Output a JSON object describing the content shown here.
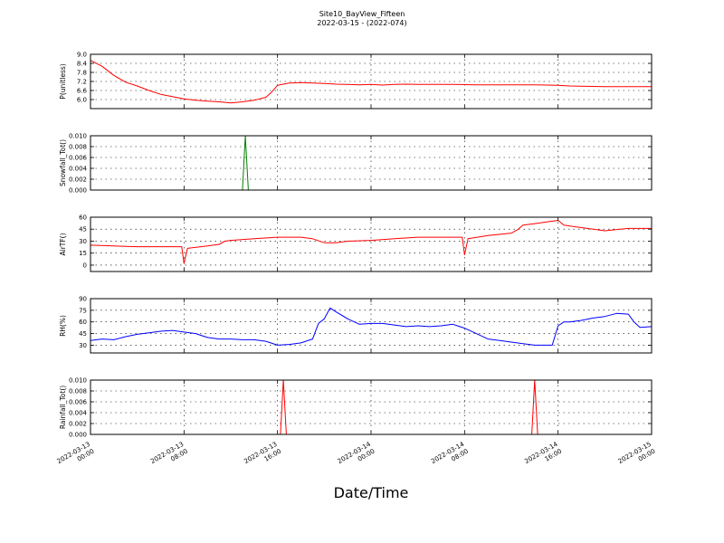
{
  "chart_data": {
    "title_line1": "Site10_BayView_Fifteen",
    "title_line2": "2022-03-15 - (2022-074)",
    "xlabel": "Date/Time",
    "x_range_hours": [
      0,
      48
    ],
    "x_ticks": [
      {
        "h": 0,
        "line1": "2022-03-13",
        "line2": "00:00"
      },
      {
        "h": 8,
        "line1": "2022-03-13",
        "line2": "08:00"
      },
      {
        "h": 16,
        "line1": "2022-03-13",
        "line2": "16:00"
      },
      {
        "h": 24,
        "line1": "2022-03-14",
        "line2": "00:00"
      },
      {
        "h": 32,
        "line1": "2022-03-14",
        "line2": "08:00"
      },
      {
        "h": 40,
        "line1": "2022-03-14",
        "line2": "16:00"
      },
      {
        "h": 48,
        "line1": "2022-03-15",
        "line2": "00:00"
      }
    ],
    "panels": [
      {
        "type": "line",
        "ylabel": "P(unitless)",
        "color": "#ff0000",
        "ylim": [
          5.4,
          9.0
        ],
        "yticks": [
          6.0,
          6.6,
          7.2,
          7.8,
          8.4,
          9.0
        ],
        "ytick_labels": [
          "6.0",
          "6.6",
          "7.2",
          "7.8",
          "8.4",
          "9.0"
        ],
        "x": [
          0,
          1,
          2,
          3,
          4,
          5,
          6,
          7,
          8,
          9,
          10,
          11,
          12,
          13,
          14,
          15,
          15.5,
          16,
          17,
          18,
          19,
          20,
          21,
          22,
          23,
          24,
          25,
          26,
          27,
          28,
          29,
          30,
          31,
          32,
          33,
          34,
          35,
          36,
          37,
          38,
          39,
          40,
          41,
          42,
          43,
          44,
          45,
          46,
          47,
          48
        ],
        "y": [
          8.6,
          8.2,
          7.6,
          7.15,
          6.9,
          6.6,
          6.35,
          6.2,
          6.05,
          5.95,
          5.9,
          5.85,
          5.78,
          5.85,
          5.95,
          6.15,
          6.5,
          6.95,
          7.1,
          7.12,
          7.1,
          7.06,
          7.02,
          7.0,
          6.98,
          7.0,
          6.96,
          7.0,
          7.02,
          7.0,
          7.01,
          7.0,
          7.0,
          6.99,
          6.98,
          6.98,
          6.97,
          6.97,
          6.98,
          6.97,
          6.96,
          6.95,
          6.9,
          6.88,
          6.87,
          6.86,
          6.86,
          6.86,
          6.86,
          6.86
        ]
      },
      {
        "type": "line",
        "ylabel": "Snowfall_Tot()",
        "color": "#008000",
        "ylim": [
          0.0,
          0.01
        ],
        "yticks": [
          0.0,
          0.002,
          0.004,
          0.006,
          0.008,
          0.01
        ],
        "ytick_labels": [
          "0.000",
          "0.002",
          "0.004",
          "0.006",
          "0.008",
          "0.010"
        ],
        "x": [
          0,
          13.0,
          13.25,
          13.5,
          48
        ],
        "y": [
          0,
          0,
          0.01,
          0,
          0
        ]
      },
      {
        "type": "line",
        "ylabel": "AirTF()",
        "color": "#ff0000",
        "ylim": [
          -8,
          60
        ],
        "yticks": [
          0,
          15,
          30,
          45,
          60
        ],
        "ytick_labels": [
          "0",
          "15",
          "30",
          "45",
          "60"
        ],
        "x": [
          0,
          2,
          4,
          6,
          7.8,
          8.0,
          8.3,
          10,
          11,
          11.5,
          12,
          14,
          16,
          18,
          19,
          20,
          21,
          22,
          24,
          26,
          28,
          30,
          31.8,
          32.0,
          32.3,
          34,
          36,
          36.5,
          37,
          38,
          39.5,
          40,
          40.5,
          42,
          44,
          46,
          48
        ],
        "y": [
          25,
          24,
          23,
          23,
          23,
          2,
          21,
          24,
          26,
          30,
          31,
          33,
          35,
          35,
          33,
          28,
          28,
          30,
          31,
          33,
          35,
          35,
          35,
          13,
          33,
          37,
          40,
          44,
          50,
          52,
          55,
          56,
          50,
          47,
          43,
          46,
          46
        ]
      },
      {
        "type": "line",
        "ylabel": "RH(%)",
        "color": "#0000ff",
        "ylim": [
          20,
          90
        ],
        "yticks": [
          30,
          45,
          60,
          75,
          90
        ],
        "ytick_labels": [
          "30",
          "45",
          "60",
          "75",
          "90"
        ],
        "x": [
          0,
          1,
          2,
          3,
          4,
          5,
          6,
          7,
          8,
          9,
          10,
          11,
          12,
          13,
          14,
          15,
          16,
          17,
          18,
          19,
          19.5,
          20,
          20.5,
          21,
          22,
          23,
          24,
          25,
          26,
          27,
          28,
          29,
          30,
          31,
          32,
          33,
          34,
          35,
          36,
          37,
          38,
          39,
          39.5,
          40,
          40.5,
          41,
          42,
          43,
          44,
          45,
          46,
          46.5,
          47,
          48
        ],
        "y": [
          36,
          38,
          37,
          41,
          44,
          46,
          48,
          49,
          47,
          45,
          40,
          38,
          38,
          37,
          37,
          35,
          30,
          31,
          33,
          38,
          58,
          64,
          78,
          73,
          64,
          57,
          58,
          58,
          56,
          54,
          55,
          54,
          55,
          57,
          52,
          45,
          38,
          36,
          34,
          32,
          30,
          30,
          30,
          55,
          60,
          60,
          62,
          65,
          67,
          71,
          70,
          60,
          53,
          54
        ]
      },
      {
        "type": "line",
        "ylabel": "Rainfall_Tot()",
        "color": "#ff0000",
        "ylim": [
          0.0,
          0.01
        ],
        "yticks": [
          0.0,
          0.002,
          0.004,
          0.006,
          0.008,
          0.01
        ],
        "ytick_labels": [
          "0.000",
          "0.002",
          "0.004",
          "0.006",
          "0.008",
          "0.010"
        ],
        "x": [
          0,
          16.25,
          16.5,
          16.75,
          37.75,
          38.0,
          38.25,
          48
        ],
        "y": [
          0,
          0,
          0.01,
          0,
          0,
          0.01,
          0,
          0
        ]
      }
    ]
  }
}
